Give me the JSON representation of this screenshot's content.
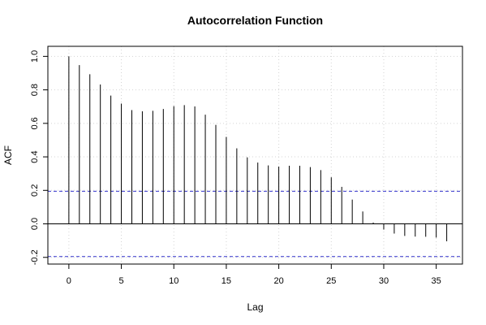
{
  "chart_data": {
    "type": "bar",
    "title": "Autocorrelation Function",
    "xlabel": "Lag",
    "ylabel": "ACF",
    "xlim": [
      -2,
      37.5
    ],
    "ylim": [
      -0.24,
      1.06
    ],
    "xticks": [
      0,
      5,
      10,
      15,
      20,
      25,
      30,
      35
    ],
    "xtick_labels": [
      "0",
      "5",
      "10",
      "15",
      "20",
      "25",
      "30",
      "35"
    ],
    "yticks": [
      -0.2,
      0.0,
      0.2,
      0.4,
      0.6,
      0.8,
      1.0
    ],
    "ytick_labels": [
      "-0.2",
      "0.0",
      "0.2",
      "0.4",
      "0.6",
      "0.8",
      "1.0"
    ],
    "lags": [
      0,
      1,
      2,
      3,
      4,
      5,
      6,
      7,
      8,
      9,
      10,
      11,
      12,
      13,
      14,
      15,
      16,
      17,
      18,
      19,
      20,
      21,
      22,
      23,
      24,
      25,
      26,
      27,
      28,
      29,
      30,
      31,
      32,
      33,
      34,
      35,
      36
    ],
    "values": [
      1.0,
      0.948,
      0.893,
      0.832,
      0.766,
      0.718,
      0.679,
      0.672,
      0.675,
      0.686,
      0.703,
      0.709,
      0.701,
      0.652,
      0.591,
      0.519,
      0.451,
      0.397,
      0.366,
      0.349,
      0.342,
      0.347,
      0.347,
      0.339,
      0.321,
      0.278,
      0.221,
      0.145,
      0.074,
      0.008,
      -0.034,
      -0.058,
      -0.072,
      -0.076,
      -0.077,
      -0.082,
      -0.104
    ],
    "confidence_bound": 0.195,
    "grid": true,
    "colors": {
      "spike": "#000000",
      "ci_line": "#3333cc",
      "grid": "#d3d3d3",
      "zero_line": "#000000"
    }
  }
}
